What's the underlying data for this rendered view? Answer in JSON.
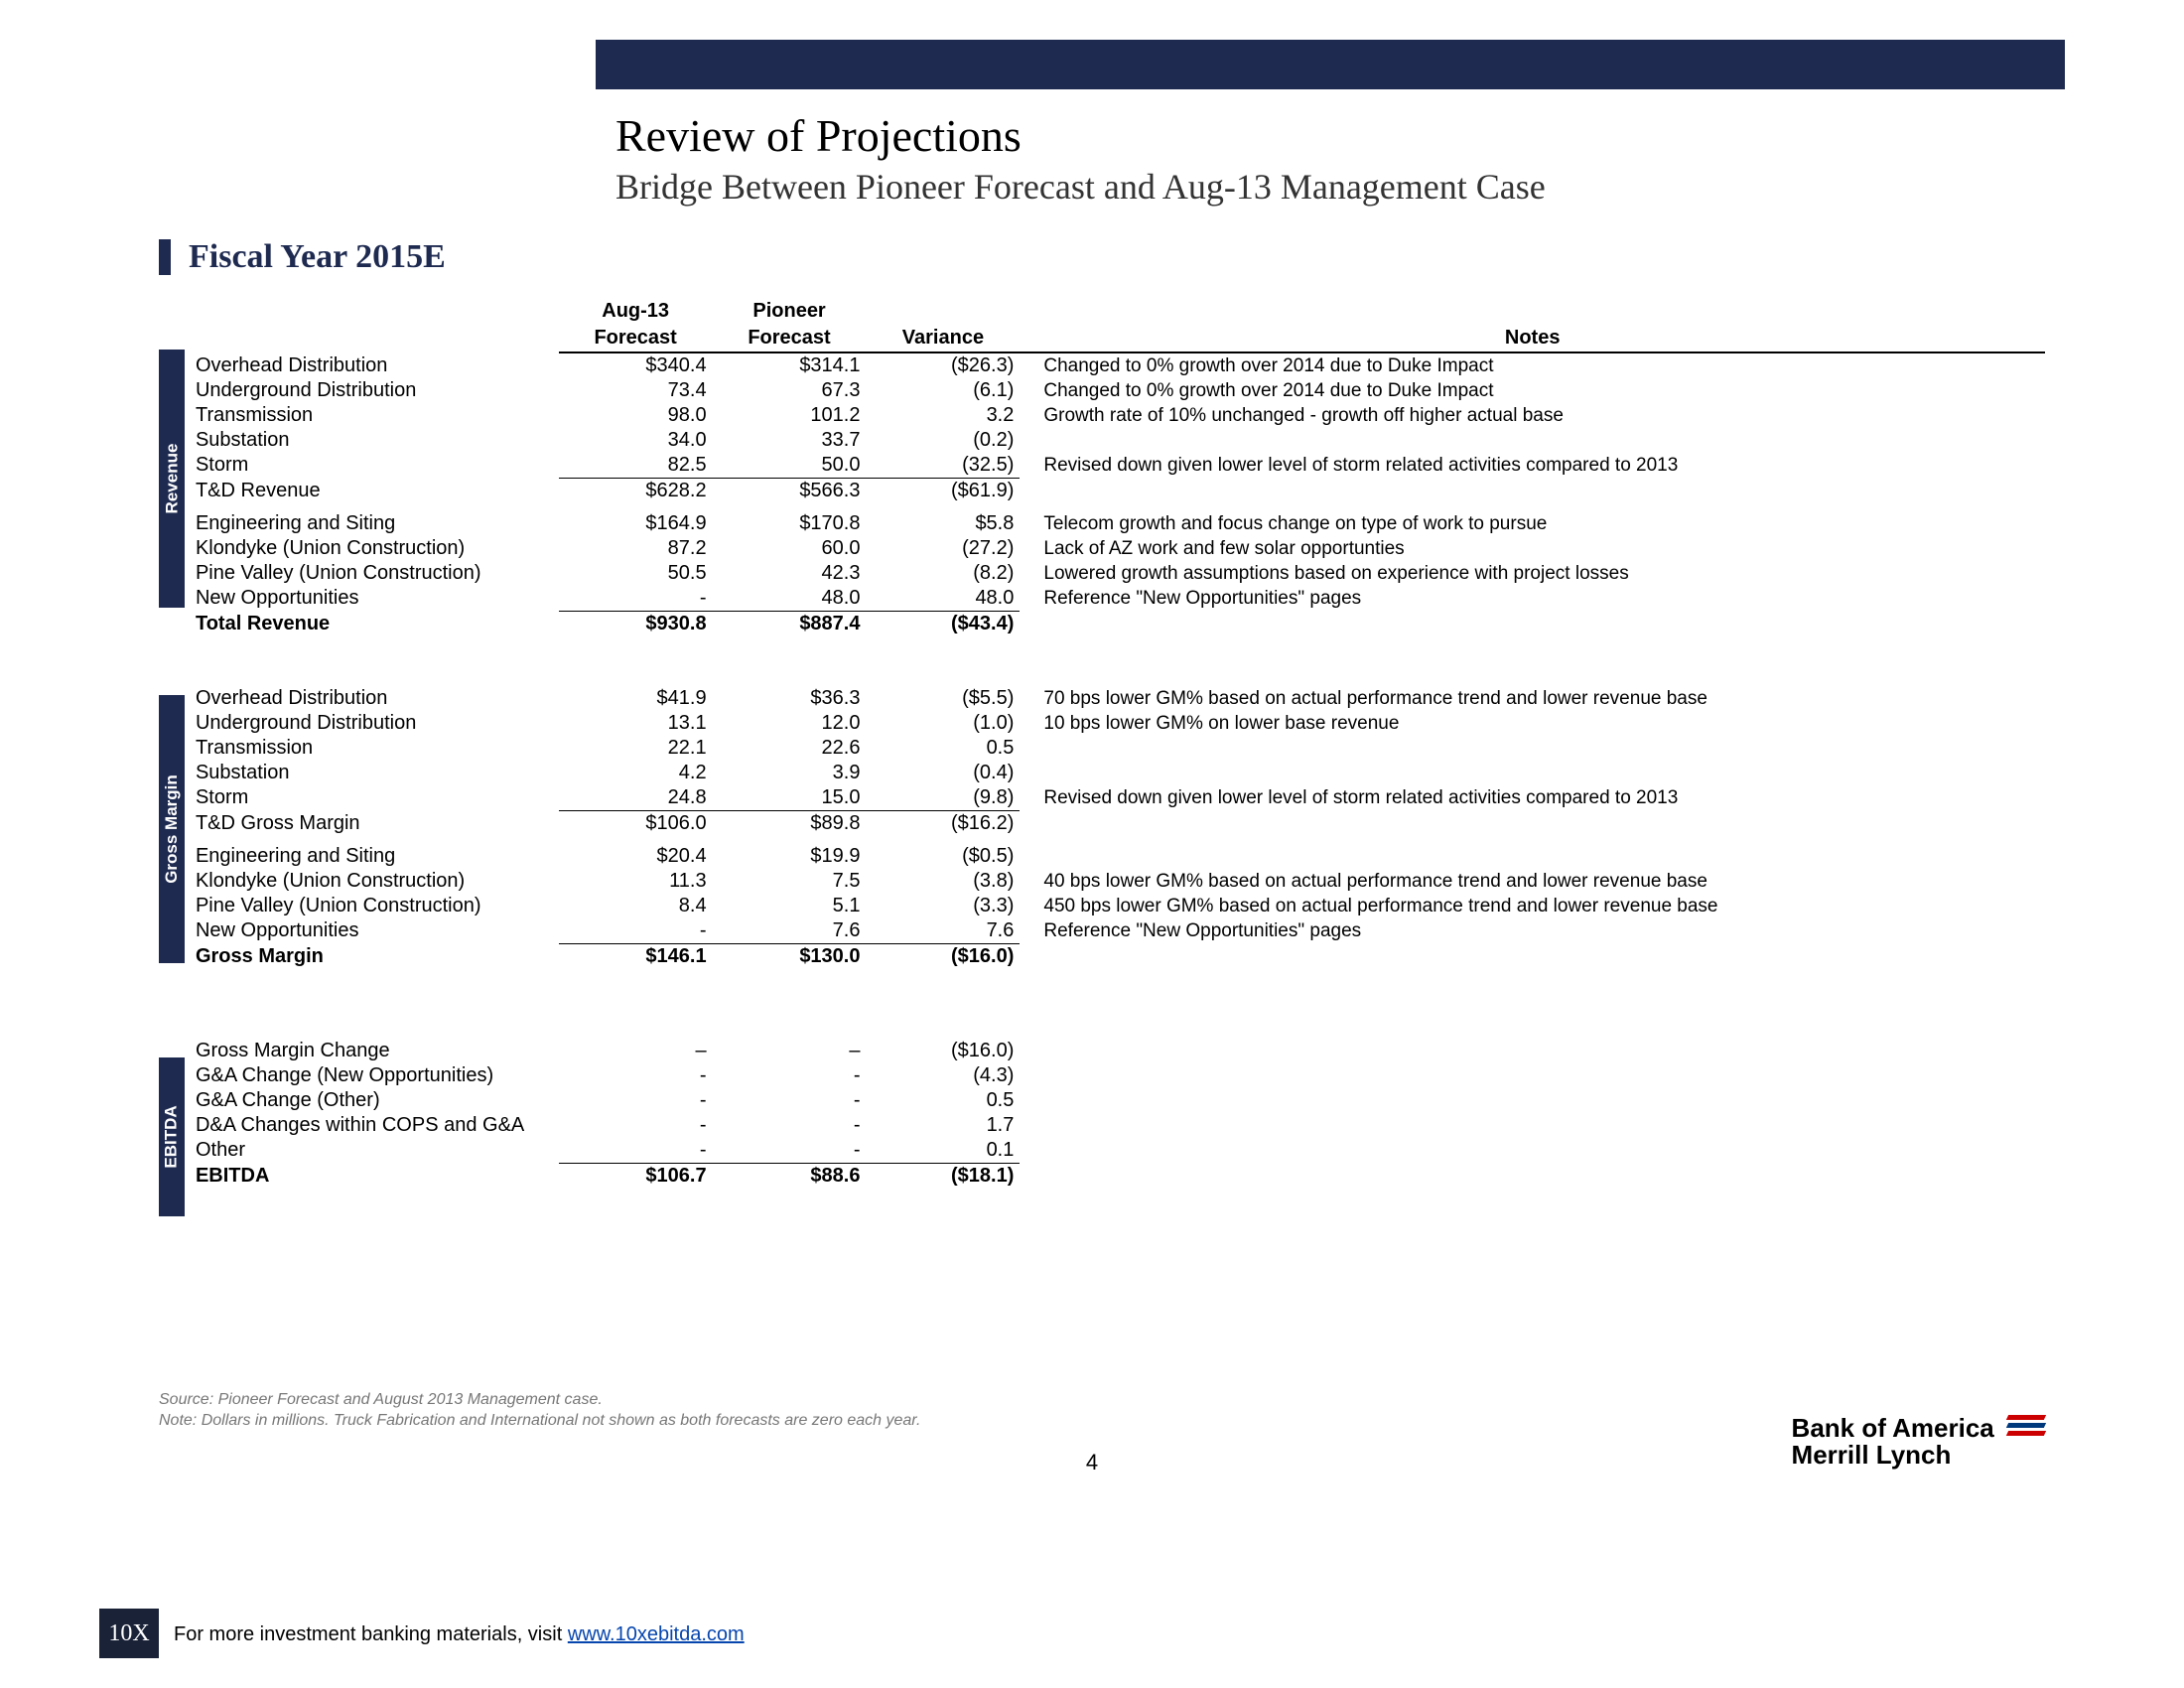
{
  "header": {
    "title": "Review of Projections",
    "subtitle": "Bridge Between Pioneer Forecast and Aug-13 Management Case",
    "section_title": "Fiscal Year 2015E"
  },
  "columns": {
    "c1": "Aug-13",
    "c1b": "Forecast",
    "c2": "Pioneer",
    "c2b": "Forecast",
    "c3": "Variance",
    "c4": "Notes"
  },
  "sidebars": {
    "revenue": "Revenue",
    "gm": "Gross Margin",
    "ebitda": "EBITDA"
  },
  "revenue": [
    {
      "label": "Overhead Distribution",
      "a": "$340.4",
      "b": "$314.1",
      "v": "($26.3)",
      "n": "Changed to 0% growth over 2014 due to Duke Impact"
    },
    {
      "label": "Underground Distribution",
      "a": "73.4",
      "b": "67.3",
      "v": "(6.1)",
      "n": "Changed to 0% growth over 2014 due to Duke Impact"
    },
    {
      "label": "Transmission",
      "a": "98.0",
      "b": "101.2",
      "v": "3.2",
      "n": "Growth rate of 10% unchanged - growth off higher actual base"
    },
    {
      "label": "Substation",
      "a": "34.0",
      "b": "33.7",
      "v": "(0.2)",
      "n": ""
    },
    {
      "label": "Storm",
      "a": "82.5",
      "b": "50.0",
      "v": "(32.5)",
      "n": "Revised down given lower level of storm related activities compared to 2013"
    }
  ],
  "revenue_sub1": {
    "label": "T&D Revenue",
    "a": "$628.2",
    "b": "$566.3",
    "v": "($61.9)"
  },
  "revenue2": [
    {
      "label": "Engineering and Siting",
      "a": "$164.9",
      "b": "$170.8",
      "v": "$5.8",
      "n": "Telecom growth and focus change on type of work to pursue"
    },
    {
      "label": "Klondyke (Union Construction)",
      "a": "87.2",
      "b": "60.0",
      "v": "(27.2)",
      "n": "Lack of AZ work and few solar opportunties"
    },
    {
      "label": "Pine Valley (Union Construction)",
      "a": "50.5",
      "b": "42.3",
      "v": "(8.2)",
      "n": "Lowered growth assumptions based on experience with project losses"
    },
    {
      "label": "New Opportunities",
      "a": "-",
      "b": "48.0",
      "v": "48.0",
      "n": "Reference \"New Opportunities\" pages"
    }
  ],
  "revenue_total": {
    "label": "Total Revenue",
    "a": "$930.8",
    "b": "$887.4",
    "v": "($43.4)"
  },
  "gm": [
    {
      "label": "Overhead Distribution",
      "a": "$41.9",
      "b": "$36.3",
      "v": "($5.5)",
      "n": "70 bps lower GM% based on actual performance trend and lower revenue base"
    },
    {
      "label": "Underground Distribution",
      "a": "13.1",
      "b": "12.0",
      "v": "(1.0)",
      "n": "10 bps lower GM% on lower base revenue"
    },
    {
      "label": "Transmission",
      "a": "22.1",
      "b": "22.6",
      "v": "0.5",
      "n": ""
    },
    {
      "label": "Substation",
      "a": "4.2",
      "b": "3.9",
      "v": "(0.4)",
      "n": ""
    },
    {
      "label": "Storm",
      "a": "24.8",
      "b": "15.0",
      "v": "(9.8)",
      "n": "Revised down given lower level of storm related activities compared to 2013"
    }
  ],
  "gm_sub1": {
    "label": "T&D Gross Margin",
    "a": "$106.0",
    "b": "$89.8",
    "v": "($16.2)"
  },
  "gm2": [
    {
      "label": "Engineering and Siting",
      "a": "$20.4",
      "b": "$19.9",
      "v": "($0.5)",
      "n": ""
    },
    {
      "label": "Klondyke (Union Construction)",
      "a": "11.3",
      "b": "7.5",
      "v": "(3.8)",
      "n": "40 bps lower GM% based on actual performance trend and lower revenue base"
    },
    {
      "label": "Pine Valley (Union Construction)",
      "a": "8.4",
      "b": "5.1",
      "v": "(3.3)",
      "n": "450 bps lower GM% based on actual performance trend and lower revenue base"
    },
    {
      "label": "New Opportunities",
      "a": "-",
      "b": "7.6",
      "v": "7.6",
      "n": "Reference \"New Opportunities\" pages"
    }
  ],
  "gm_total": {
    "label": "Gross Margin",
    "a": "$146.1",
    "b": "$130.0",
    "v": "($16.0)"
  },
  "ebitda": [
    {
      "label": "Gross Margin Change",
      "a": "–",
      "b": "–",
      "v": "($16.0)"
    },
    {
      "label": "G&A Change (New Opportunities)",
      "a": "-",
      "b": "-",
      "v": "(4.3)"
    },
    {
      "label": "G&A Change (Other)",
      "a": "-",
      "b": "-",
      "v": "0.5"
    },
    {
      "label": "D&A Changes within COPS and G&A",
      "a": "-",
      "b": "-",
      "v": "1.7"
    },
    {
      "label": "Other",
      "a": "-",
      "b": "-",
      "v": "0.1"
    }
  ],
  "ebitda_total": {
    "label": "EBITDA",
    "a": "$106.7",
    "b": "$88.6",
    "v": "($18.1)"
  },
  "footnotes": {
    "l1": "Source: Pioneer Forecast and August 2013 Management case.",
    "l2": "Note: Dollars in millions. Truck Fabrication and International not shown as both forecasts are zero each year."
  },
  "page": "4",
  "bofa": {
    "l1": "Bank of America",
    "l2": "Merrill Lynch"
  },
  "bottom": {
    "logo": "10X",
    "text": "For more investment banking materials, visit ",
    "link": "www.10xebitda.com"
  }
}
